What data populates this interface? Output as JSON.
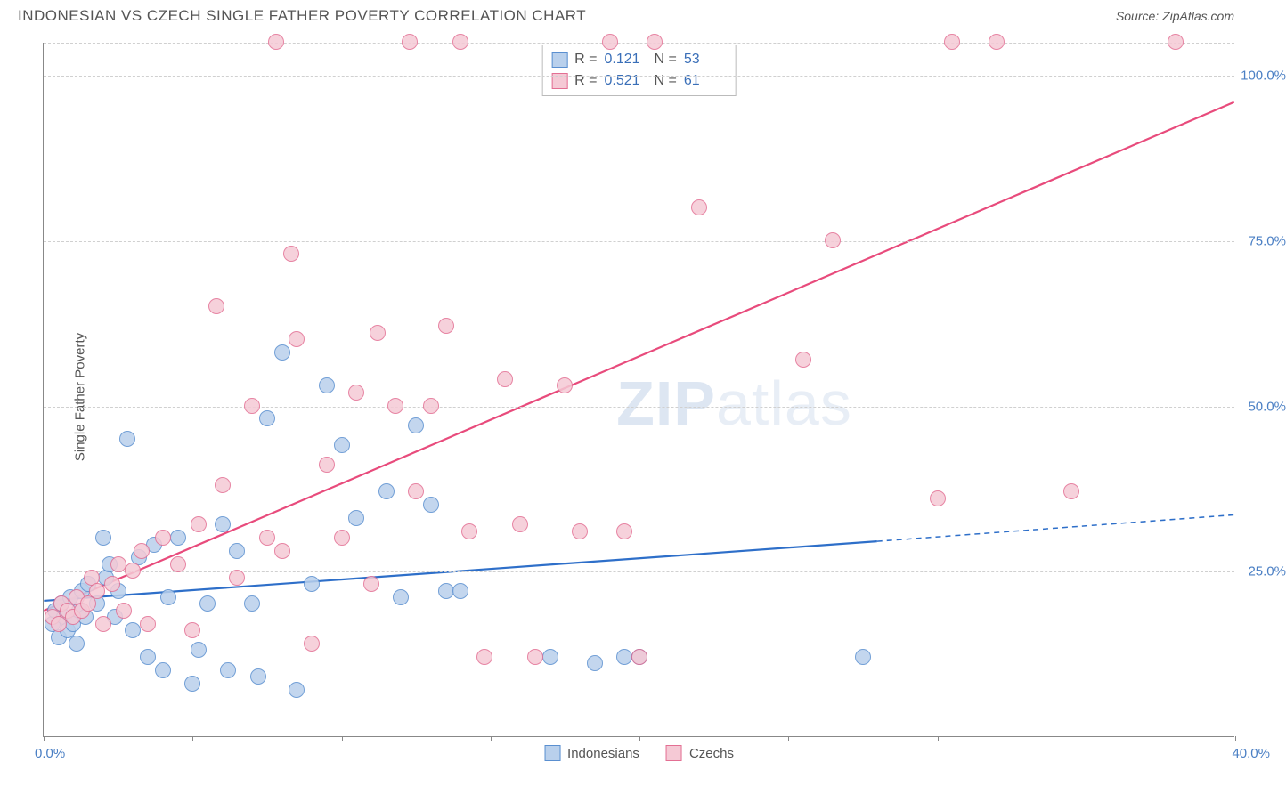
{
  "title": "INDONESIAN VS CZECH SINGLE FATHER POVERTY CORRELATION CHART",
  "source": "Source: ZipAtlas.com",
  "watermark_a": "ZIP",
  "watermark_b": "atlas",
  "chart": {
    "type": "scatter",
    "y_label": "Single Father Poverty",
    "x_min": 0.0,
    "x_max": 40.0,
    "y_min": 0.0,
    "y_max": 105.0,
    "x_ticks": [
      0,
      5,
      10,
      15,
      20,
      25,
      30,
      35,
      40
    ],
    "y_gridlines": [
      25,
      50,
      75,
      100,
      105
    ],
    "y_tick_labels": {
      "25": "25.0%",
      "50": "50.0%",
      "75": "75.0%",
      "100": "100.0%"
    },
    "x_origin_label": "0.0%",
    "x_max_label": "40.0%",
    "background_color": "#ffffff",
    "grid_color": "#d0d0d0",
    "axis_color": "#888888",
    "tick_label_color": "#4a7fc4",
    "point_radius": 9,
    "point_border_width": 1.2,
    "series": [
      {
        "name": "Indonesians",
        "fill": "#b9d0ec",
        "stroke": "#5a8fd0",
        "trend_color": "#2e6fc9",
        "trend_width": 2.2,
        "R": "0.121",
        "N": "53",
        "trend": {
          "x1": 0,
          "y1": 20.5,
          "x2": 28,
          "y2": 29.5,
          "x2_dash": 40,
          "y2_dash": 33.5
        },
        "points": [
          [
            0.3,
            17
          ],
          [
            0.4,
            19
          ],
          [
            0.5,
            15
          ],
          [
            0.6,
            20
          ],
          [
            0.7,
            18
          ],
          [
            0.8,
            16
          ],
          [
            0.9,
            21
          ],
          [
            1.0,
            17
          ],
          [
            1.1,
            14
          ],
          [
            1.2,
            19
          ],
          [
            1.3,
            22
          ],
          [
            1.4,
            18
          ],
          [
            1.5,
            23
          ],
          [
            1.8,
            20
          ],
          [
            2.0,
            30
          ],
          [
            2.1,
            24
          ],
          [
            2.2,
            26
          ],
          [
            2.4,
            18
          ],
          [
            2.5,
            22
          ],
          [
            2.8,
            45
          ],
          [
            3.0,
            16
          ],
          [
            3.2,
            27
          ],
          [
            3.5,
            12
          ],
          [
            3.7,
            29
          ],
          [
            4.0,
            10
          ],
          [
            4.2,
            21
          ],
          [
            4.5,
            30
          ],
          [
            5.0,
            8
          ],
          [
            5.2,
            13
          ],
          [
            5.5,
            20
          ],
          [
            6.0,
            32
          ],
          [
            6.2,
            10
          ],
          [
            6.5,
            28
          ],
          [
            7.0,
            20
          ],
          [
            7.2,
            9
          ],
          [
            7.5,
            48
          ],
          [
            8.0,
            58
          ],
          [
            8.5,
            7
          ],
          [
            9.0,
            23
          ],
          [
            9.5,
            53
          ],
          [
            10.0,
            44
          ],
          [
            10.5,
            33
          ],
          [
            11.5,
            37
          ],
          [
            12.0,
            21
          ],
          [
            12.5,
            47
          ],
          [
            13.0,
            35
          ],
          [
            13.5,
            22
          ],
          [
            14.0,
            22
          ],
          [
            17.0,
            12
          ],
          [
            18.5,
            11
          ],
          [
            19.5,
            12
          ],
          [
            20.0,
            12
          ],
          [
            27.5,
            12
          ]
        ]
      },
      {
        "name": "Czechs",
        "fill": "#f5c9d5",
        "stroke": "#e36f93",
        "trend_color": "#e84b7c",
        "trend_width": 2.2,
        "R": "0.521",
        "N": "61",
        "trend": {
          "x1": 0,
          "y1": 19,
          "x2": 40,
          "y2": 96,
          "x2_dash": 40,
          "y2_dash": 96
        },
        "points": [
          [
            0.3,
            18
          ],
          [
            0.5,
            17
          ],
          [
            0.6,
            20
          ],
          [
            0.8,
            19
          ],
          [
            1.0,
            18
          ],
          [
            1.1,
            21
          ],
          [
            1.3,
            19
          ],
          [
            1.5,
            20
          ],
          [
            1.6,
            24
          ],
          [
            1.8,
            22
          ],
          [
            2.0,
            17
          ],
          [
            2.3,
            23
          ],
          [
            2.5,
            26
          ],
          [
            2.7,
            19
          ],
          [
            3.0,
            25
          ],
          [
            3.3,
            28
          ],
          [
            3.5,
            17
          ],
          [
            4.0,
            30
          ],
          [
            4.5,
            26
          ],
          [
            5.0,
            16
          ],
          [
            5.2,
            32
          ],
          [
            5.8,
            65
          ],
          [
            6.0,
            38
          ],
          [
            6.5,
            24
          ],
          [
            7.0,
            50
          ],
          [
            7.5,
            30
          ],
          [
            7.8,
            105
          ],
          [
            8.0,
            28
          ],
          [
            8.3,
            73
          ],
          [
            8.5,
            60
          ],
          [
            9.0,
            14
          ],
          [
            9.5,
            41
          ],
          [
            10.0,
            30
          ],
          [
            10.5,
            52
          ],
          [
            11.0,
            23
          ],
          [
            11.2,
            61
          ],
          [
            11.8,
            50
          ],
          [
            12.3,
            105
          ],
          [
            12.5,
            37
          ],
          [
            13.0,
            50
          ],
          [
            13.5,
            62
          ],
          [
            14.0,
            105
          ],
          [
            14.3,
            31
          ],
          [
            14.8,
            12
          ],
          [
            15.5,
            54
          ],
          [
            16.0,
            32
          ],
          [
            16.5,
            12
          ],
          [
            17.5,
            53
          ],
          [
            18.0,
            31
          ],
          [
            19.0,
            105
          ],
          [
            19.5,
            31
          ],
          [
            20.0,
            12
          ],
          [
            20.5,
            105
          ],
          [
            22.0,
            80
          ],
          [
            25.5,
            57
          ],
          [
            26.5,
            75
          ],
          [
            30.0,
            36
          ],
          [
            30.5,
            105
          ],
          [
            32.0,
            105
          ],
          [
            34.5,
            37
          ],
          [
            38.0,
            105
          ]
        ]
      }
    ],
    "stats_box": {
      "r_label": "R =",
      "n_label": "N ="
    },
    "legend": {
      "label_a": "Indonesians",
      "label_b": "Czechs"
    }
  }
}
